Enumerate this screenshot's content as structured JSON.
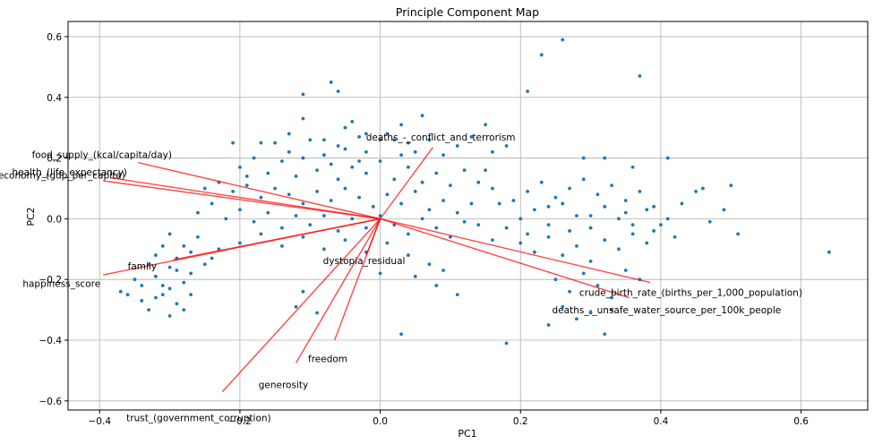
{
  "chart_data": {
    "type": "scatter",
    "title": "Principle Component Map",
    "xlabel": "PC1",
    "ylabel": "PC2",
    "xlim": [
      -0.445,
      0.695
    ],
    "ylim": [
      -0.63,
      0.65
    ],
    "grid": true,
    "xticks": [
      -0.4,
      -0.2,
      0.0,
      0.2,
      0.4,
      0.6
    ],
    "yticks": [
      -0.6,
      -0.4,
      -0.2,
      0.0,
      0.2,
      0.4,
      0.6
    ],
    "xtick_labels": [
      "−0.4",
      "−0.2",
      "0.0",
      "0.2",
      "0.4",
      "0.6"
    ],
    "ytick_labels": [
      "−0.6",
      "−0.4",
      "−0.2",
      "0.0",
      "0.2",
      "0.4",
      "0.6"
    ],
    "colors": {
      "points": "#1f77b4",
      "vectors": "#ff0000",
      "grid": "#b0b0b0"
    },
    "points": [
      [
        0.26,
        0.59
      ],
      [
        0.23,
        0.54
      ],
      [
        0.21,
        0.42
      ],
      [
        0.37,
        0.47
      ],
      [
        -0.11,
        0.41
      ],
      [
        -0.07,
        0.45
      ],
      [
        -0.06,
        0.42
      ],
      [
        0.03,
        0.31
      ],
      [
        0.06,
        0.34
      ],
      [
        0.15,
        0.31
      ],
      [
        -0.04,
        0.32
      ],
      [
        -0.11,
        0.33
      ],
      [
        -0.13,
        0.28
      ],
      [
        -0.17,
        0.25
      ],
      [
        -0.1,
        0.26
      ],
      [
        -0.08,
        0.26
      ],
      [
        -0.06,
        0.24
      ],
      [
        -0.05,
        0.23
      ],
      [
        -0.03,
        0.27
      ],
      [
        -0.02,
        0.22
      ],
      [
        0.01,
        0.28
      ],
      [
        0.02,
        0.26
      ],
      [
        0.04,
        0.25
      ],
      [
        0.05,
        0.22
      ],
      [
        0.07,
        0.26
      ],
      [
        0.09,
        0.21
      ],
      [
        0.11,
        0.24
      ],
      [
        0.13,
        0.27
      ],
      [
        0.16,
        0.22
      ],
      [
        0.18,
        0.24
      ],
      [
        -0.2,
        0.17
      ],
      [
        -0.18,
        0.2
      ],
      [
        -0.16,
        0.15
      ],
      [
        -0.14,
        0.19
      ],
      [
        -0.12,
        0.14
      ],
      [
        -0.11,
        0.2
      ],
      [
        -0.09,
        0.16
      ],
      [
        -0.07,
        0.18
      ],
      [
        -0.06,
        0.13
      ],
      [
        -0.04,
        0.17
      ],
      [
        -0.02,
        0.15
      ],
      [
        0.0,
        0.19
      ],
      [
        0.02,
        0.13
      ],
      [
        0.04,
        0.17
      ],
      [
        0.06,
        0.12
      ],
      [
        0.08,
        0.15
      ],
      [
        0.1,
        0.11
      ],
      [
        0.12,
        0.16
      ],
      [
        0.14,
        0.12
      ],
      [
        0.16,
        0.1
      ],
      [
        -0.25,
        0.1
      ],
      [
        -0.23,
        0.12
      ],
      [
        -0.21,
        0.09
      ],
      [
        -0.19,
        0.11
      ],
      [
        -0.17,
        0.07
      ],
      [
        -0.15,
        0.1
      ],
      [
        -0.13,
        0.08
      ],
      [
        -0.11,
        0.05
      ],
      [
        -0.09,
        0.09
      ],
      [
        -0.07,
        0.06
      ],
      [
        -0.05,
        0.1
      ],
      [
        -0.03,
        0.07
      ],
      [
        -0.01,
        0.04
      ],
      [
        0.01,
        0.08
      ],
      [
        0.03,
        0.05
      ],
      [
        0.05,
        0.09
      ],
      [
        0.07,
        0.03
      ],
      [
        0.09,
        0.06
      ],
      [
        0.11,
        0.02
      ],
      [
        0.13,
        0.05
      ],
      [
        -0.26,
        0.02
      ],
      [
        -0.24,
        0.05
      ],
      [
        -0.22,
        0.0
      ],
      [
        -0.2,
        0.03
      ],
      [
        -0.18,
        -0.01
      ],
      [
        -0.16,
        0.02
      ],
      [
        -0.14,
        -0.03
      ],
      [
        -0.12,
        0.01
      ],
      [
        -0.1,
        -0.02
      ],
      [
        -0.08,
        0.01
      ],
      [
        -0.06,
        -0.04
      ],
      [
        -0.04,
        0.0
      ],
      [
        -0.02,
        -0.03
      ],
      [
        0.0,
        0.01
      ],
      [
        0.02,
        -0.02
      ],
      [
        0.04,
        -0.05
      ],
      [
        0.06,
        0.0
      ],
      [
        0.08,
        -0.03
      ],
      [
        0.1,
        -0.06
      ],
      [
        0.12,
        -0.01
      ],
      [
        -0.2,
        -0.08
      ],
      [
        -0.17,
        -0.05
      ],
      [
        -0.14,
        -0.09
      ],
      [
        -0.11,
        -0.06
      ],
      [
        -0.08,
        -0.1
      ],
      [
        -0.05,
        -0.07
      ],
      [
        -0.02,
        -0.11
      ],
      [
        0.01,
        -0.08
      ],
      [
        0.04,
        -0.12
      ],
      [
        0.07,
        -0.15
      ],
      [
        -0.11,
        -0.24
      ],
      [
        -0.09,
        -0.31
      ],
      [
        -0.12,
        -0.29
      ],
      [
        0.0,
        -0.18
      ],
      [
        0.05,
        -0.19
      ],
      [
        0.08,
        -0.22
      ],
      [
        0.11,
        -0.25
      ],
      [
        0.03,
        -0.38
      ],
      [
        0.18,
        -0.41
      ],
      [
        0.09,
        -0.17
      ],
      [
        -0.3,
        -0.16
      ],
      [
        -0.32,
        -0.19
      ],
      [
        -0.34,
        -0.22
      ],
      [
        -0.31,
        -0.25
      ],
      [
        -0.29,
        -0.28
      ],
      [
        -0.33,
        -0.3
      ],
      [
        -0.36,
        -0.25
      ],
      [
        -0.35,
        -0.2
      ],
      [
        -0.28,
        -0.21
      ],
      [
        -0.27,
        -0.18
      ],
      [
        -0.3,
        -0.05
      ],
      [
        -0.31,
        -0.09
      ],
      [
        -0.32,
        -0.12
      ],
      [
        -0.29,
        -0.13
      ],
      [
        -0.33,
        -0.15
      ],
      [
        -0.28,
        -0.09
      ],
      [
        -0.3,
        -0.32
      ],
      [
        -0.28,
        -0.3
      ],
      [
        -0.34,
        -0.27
      ],
      [
        -0.31,
        -0.22
      ],
      [
        -0.26,
        -0.06
      ],
      [
        -0.27,
        -0.11
      ],
      [
        -0.25,
        -0.15
      ],
      [
        -0.24,
        -0.13
      ],
      [
        -0.23,
        -0.1
      ],
      [
        -0.29,
        -0.17
      ],
      [
        -0.37,
        -0.24
      ],
      [
        -0.32,
        -0.26
      ],
      [
        -0.3,
        -0.23
      ],
      [
        -0.27,
        -0.25
      ],
      [
        0.2,
        0.0
      ],
      [
        0.22,
        0.03
      ],
      [
        0.24,
        -0.02
      ],
      [
        0.26,
        0.05
      ],
      [
        0.28,
        0.01
      ],
      [
        0.3,
        -0.03
      ],
      [
        0.32,
        0.04
      ],
      [
        0.34,
        0.0
      ],
      [
        0.36,
        -0.02
      ],
      [
        0.38,
        0.03
      ],
      [
        0.2,
        -0.08
      ],
      [
        0.22,
        -0.11
      ],
      [
        0.24,
        -0.06
      ],
      [
        0.26,
        -0.12
      ],
      [
        0.28,
        -0.09
      ],
      [
        0.3,
        -0.14
      ],
      [
        0.32,
        -0.07
      ],
      [
        0.34,
        -0.1
      ],
      [
        0.36,
        -0.05
      ],
      [
        0.38,
        -0.08
      ],
      [
        0.21,
        0.09
      ],
      [
        0.23,
        0.12
      ],
      [
        0.25,
        0.07
      ],
      [
        0.27,
        0.1
      ],
      [
        0.29,
        0.13
      ],
      [
        0.31,
        0.08
      ],
      [
        0.33,
        0.11
      ],
      [
        0.35,
        0.06
      ],
      [
        0.37,
        0.09
      ],
      [
        0.39,
        0.04
      ],
      [
        0.25,
        -0.2
      ],
      [
        0.27,
        -0.24
      ],
      [
        0.29,
        -0.18
      ],
      [
        0.31,
        -0.22
      ],
      [
        0.33,
        -0.26
      ],
      [
        0.35,
        -0.17
      ],
      [
        0.37,
        -0.2
      ],
      [
        0.26,
        -0.29
      ],
      [
        0.3,
        -0.31
      ],
      [
        0.33,
        -0.3
      ],
      [
        0.32,
        -0.38
      ],
      [
        0.24,
        -0.35
      ],
      [
        0.28,
        -0.33
      ],
      [
        0.4,
        -0.02
      ],
      [
        0.41,
        0.0
      ],
      [
        0.43,
        0.05
      ],
      [
        0.45,
        0.09
      ],
      [
        0.47,
        -0.01
      ],
      [
        0.49,
        0.03
      ],
      [
        0.51,
        -0.05
      ],
      [
        0.5,
        0.11
      ],
      [
        0.46,
        0.1
      ],
      [
        0.42,
        -0.06
      ],
      [
        0.39,
        -0.04
      ],
      [
        0.35,
        0.02
      ],
      [
        0.3,
        0.01
      ],
      [
        0.27,
        -0.04
      ],
      [
        0.24,
        0.04
      ],
      [
        0.21,
        -0.05
      ],
      [
        0.19,
        0.06
      ],
      [
        0.64,
        -0.11
      ],
      [
        0.41,
        0.2
      ],
      [
        0.36,
        0.17
      ],
      [
        0.32,
        0.2
      ],
      [
        0.29,
        0.2
      ],
      [
        0.15,
        0.16
      ],
      [
        0.17,
        0.05
      ],
      [
        0.14,
        -0.02
      ],
      [
        0.16,
        -0.07
      ],
      [
        0.18,
        -0.03
      ],
      [
        -0.15,
        0.25
      ],
      [
        -0.13,
        0.22
      ],
      [
        -0.05,
        0.3
      ],
      [
        -0.02,
        0.28
      ],
      [
        0.0,
        0.26
      ],
      [
        -0.08,
        0.21
      ],
      [
        -0.03,
        0.19
      ],
      [
        0.03,
        0.21
      ],
      [
        -0.21,
        0.25
      ],
      [
        -0.19,
        0.14
      ]
    ],
    "vectors": [
      {
        "label": "deaths_-_conflict_and_terrorism",
        "x": 0.075,
        "y": 0.235
      },
      {
        "label": "food_supply_(kcal/capita/day)",
        "x": -0.345,
        "y": 0.185
      },
      {
        "label": "health_(life_expectancy)",
        "x": -0.385,
        "y": 0.135
      },
      {
        "label": "economy_(gdp_per_capita)",
        "x": -0.395,
        "y": 0.125
      },
      {
        "label": "family",
        "x": -0.295,
        "y": -0.135
      },
      {
        "label": "happiness_score",
        "x": -0.395,
        "y": -0.185
      },
      {
        "label": "dystopia_residual",
        "x": -0.02,
        "y": -0.12
      },
      {
        "label": "generosity",
        "x": -0.12,
        "y": -0.475
      },
      {
        "label": "trust_(government_corruption)",
        "x": -0.225,
        "y": -0.57
      },
      {
        "label": "freedom",
        "x": -0.065,
        "y": -0.4
      },
      {
        "label": "crude_birth_rate_(births_per_1,000_population)",
        "x": 0.385,
        "y": -0.21
      },
      {
        "label": "deaths_-_unsafe_water_source_per_100k_people",
        "x": 0.355,
        "y": -0.26
      }
    ]
  }
}
